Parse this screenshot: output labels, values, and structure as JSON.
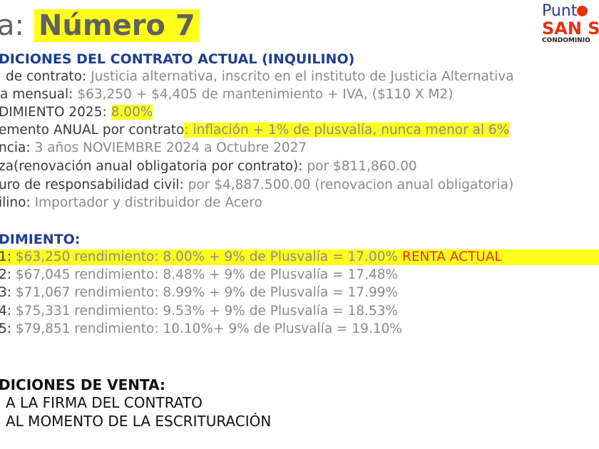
{
  "title": {
    "prefix": "a:",
    "number": "Número 7"
  },
  "logo": {
    "line1": "Punt",
    "line2": "SAN S",
    "line3": "CONDOMINIO"
  },
  "contrato": {
    "header": "DICIONES DEL CONTRATO ACTUAL (INQUILINO)",
    "rows": [
      {
        "label": "de contrato:",
        "value": "Justicia alternativa, inscrito en el instituto de Justicia Alternativa"
      },
      {
        "label": "a mensual:",
        "value": "$63,250 + $4,405 de mantenimiento + IVA, ($110 X M2)"
      },
      {
        "label": "DIMIENTO 2025:",
        "value": "8.00%"
      },
      {
        "label": "emento ANUAL por contrato",
        "value": ": inflación + 1% de plusvalía, nunca menor al 6%"
      },
      {
        "label": "ncia:",
        "value": "3 años NOVIEMBRE 2024 a Octubre 2027"
      },
      {
        "label": "za(renovación anual obligatoria por contrato):",
        "value": "por $811,860.00"
      },
      {
        "label": "uro de responsabilidad civil:",
        "value": "por $4,887.500.00 (renovacion anual obligatoria)"
      },
      {
        "label": "ilino:",
        "value": "Importador y distribuidor de Acero"
      }
    ]
  },
  "rendimiento": {
    "header": "DIMIENTO:",
    "rows": [
      {
        "label": "1:",
        "value": "$63,250 rendimiento: 8.00% + 9% de Plusvalía = 17.00%",
        "note": "RENTA ACTUAL"
      },
      {
        "label": "2:",
        "value": "$67,045 rendimiento: 8.48% + 9% de Plusvalía = 17.48%"
      },
      {
        "label": "3:",
        "value": "$71,067 rendimiento: 8.99% + 9% de Plusvalía = 17.99%"
      },
      {
        "label": "4:",
        "value": "$75,331 rendimiento: 9.53% + 9% de Plusvalía = 18.53%"
      },
      {
        "label": "5:",
        "value": "$79,851 rendimiento: 10.10%+ 9% de Plusvalía = 19.10%"
      }
    ]
  },
  "venta": {
    "header": "DICIONES DE VENTA:",
    "rows": [
      "A LA FIRMA DEL CONTRATO",
      "AL MOMENTO DE LA ESCRITURACIÓN"
    ]
  },
  "colors": {
    "highlight": "#ffff1a",
    "header_blue": "#1f3e8c",
    "accent_red": "#e8300e"
  }
}
